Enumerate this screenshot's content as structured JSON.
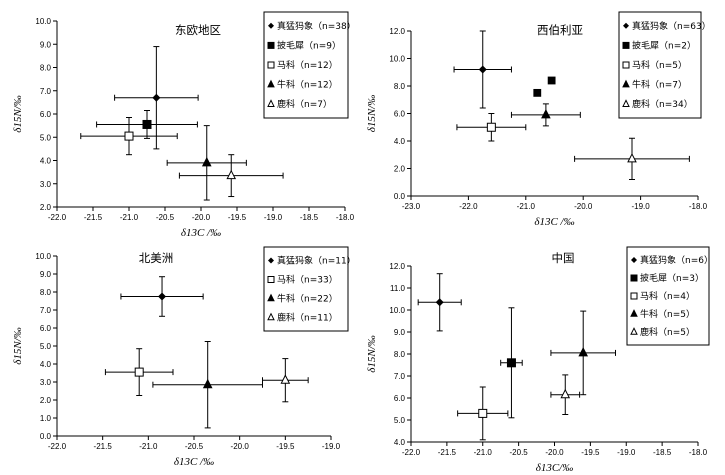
{
  "chart_data": [
    {
      "type": "scatter",
      "title": "东欧地区",
      "xlabel": "δ13C /‰",
      "ylabel": "δ15N/‰",
      "xlim": [
        -22.0,
        -18.0
      ],
      "ylim": [
        2.0,
        10.0
      ],
      "xticks": [
        "-22.0",
        "-21.5",
        "-21.0",
        "-20.5",
        "-20.0",
        "-19.5",
        "-19.0",
        "-18.5",
        "-18.0"
      ],
      "yticks": [
        "2.0",
        "3.0",
        "4.0",
        "5.0",
        "6.0",
        "7.0",
        "8.0",
        "9.0",
        "10.0"
      ],
      "legend_position": "right",
      "series": [
        {
          "name": "真猛犸象（n=38）",
          "marker": "diamond",
          "x": -20.62,
          "y": 6.7,
          "xerr": 0.58,
          "yerr": 2.2
        },
        {
          "name": "披毛犀（n=9）",
          "marker": "square",
          "x": -20.75,
          "y": 5.55,
          "xerr": 0.7,
          "yerr": 0.6
        },
        {
          "name": "马科（n=12）",
          "marker": "open-square",
          "x": -21.0,
          "y": 5.05,
          "xerr": 0.67,
          "yerr": 0.8
        },
        {
          "name": "牛科（n=12）",
          "marker": "triangle",
          "x": -19.92,
          "y": 3.9,
          "xerr": 0.55,
          "yerr": 1.6
        },
        {
          "name": "鹿科（n=7）",
          "marker": "open-triangle",
          "x": -19.58,
          "y": 3.35,
          "xerr": 0.72,
          "yerr": 0.9
        }
      ]
    },
    {
      "type": "scatter",
      "title": "西伯利亚",
      "xlabel": "δ13C /‰",
      "ylabel": "δ15N/‰",
      "xlim": [
        -23.0,
        -18.0
      ],
      "ylim": [
        0.0,
        12.0
      ],
      "xticks": [
        "-23.0",
        "-22.0",
        "-21.0",
        "-20.0",
        "-19.0",
        "-18.0"
      ],
      "yticks": [
        "0.0",
        "2.0",
        "4.0",
        "6.0",
        "8.0",
        "10.0",
        "12.0"
      ],
      "legend_position": "right",
      "series": [
        {
          "name": "真猛犸象（n=63）",
          "marker": "diamond",
          "x": -21.75,
          "y": 9.2,
          "xerr": 0.5,
          "yerr": 2.8
        },
        {
          "name": "披毛犀（n=2）",
          "marker": "square",
          "points": [
            [
              -20.8,
              7.5
            ],
            [
              -20.55,
              8.4
            ]
          ]
        },
        {
          "name": "马科（n=5）",
          "marker": "open-square",
          "x": -21.6,
          "y": 5.0,
          "xerr": 0.6,
          "yerr": 1.0
        },
        {
          "name": "牛科（n=7）",
          "marker": "triangle",
          "x": -20.65,
          "y": 5.9,
          "xerr": 0.6,
          "yerr": 0.8
        },
        {
          "name": "鹿科（n=34）",
          "marker": "open-triangle",
          "x": -19.15,
          "y": 2.7,
          "xerr": 1.0,
          "yerr": 1.5
        }
      ]
    },
    {
      "type": "scatter",
      "title": "北美洲",
      "xlabel": "δ13C /‰",
      "ylabel": "δ15N/‰",
      "xlim": [
        -22.0,
        -19.0
      ],
      "ylim": [
        0.0,
        10.0
      ],
      "xticks": [
        "-22.0",
        "-21.5",
        "-21.0",
        "-20.5",
        "-20.0",
        "-19.5",
        "-19.0"
      ],
      "yticks": [
        "0.0",
        "1.0",
        "2.0",
        "3.0",
        "4.0",
        "5.0",
        "6.0",
        "7.0",
        "8.0",
        "9.0",
        "10.0"
      ],
      "legend_position": "right",
      "series": [
        {
          "name": "真猛犸象（n=11）",
          "marker": "diamond",
          "x": -20.85,
          "y": 7.75,
          "xerr": 0.45,
          "yerr": 1.1
        },
        {
          "name": "马科（n=33）",
          "marker": "open-square",
          "x": -21.1,
          "y": 3.55,
          "xerr": 0.37,
          "yerr": 1.3
        },
        {
          "name": "牛科（n=22）",
          "marker": "triangle",
          "x": -20.35,
          "y": 2.85,
          "xerr": 0.6,
          "yerr": 2.4
        },
        {
          "name": "鹿科（n=11）",
          "marker": "open-triangle",
          "x": -19.5,
          "y": 3.1,
          "xerr": 0.25,
          "yerr": 1.2
        }
      ]
    },
    {
      "type": "scatter",
      "title": "中国",
      "xlabel": "δ13C/‰",
      "ylabel": "δ15N/‰",
      "xlim": [
        -22.0,
        -18.0
      ],
      "ylim": [
        4.0,
        12.0
      ],
      "xticks": [
        "-22.0",
        "-21.5",
        "-21.0",
        "-20.5",
        "-20.0",
        "-19.5",
        "-19.0",
        "-18.5",
        "-18.0"
      ],
      "yticks": [
        "4.0",
        "5.0",
        "6.0",
        "7.0",
        "8.0",
        "9.0",
        "10.0",
        "11.0",
        "12.0"
      ],
      "legend_position": "right",
      "series": [
        {
          "name": "真猛犸象（n=6）",
          "marker": "diamond",
          "x": -21.6,
          "y": 10.35,
          "xerr": 0.3,
          "yerr": 1.3
        },
        {
          "name": "披毛犀（n=3）",
          "marker": "square",
          "x": -20.6,
          "y": 7.6,
          "xerr": 0.15,
          "yerr": 2.5
        },
        {
          "name": "马科（n=4）",
          "marker": "open-square",
          "x": -21.0,
          "y": 5.3,
          "xerr": 0.35,
          "yerr": 1.2
        },
        {
          "name": "牛科（n=5）",
          "marker": "triangle",
          "x": -19.6,
          "y": 8.05,
          "xerr": 0.45,
          "yerr": 1.9
        },
        {
          "name": "鹿科（n=5）",
          "marker": "open-triangle",
          "x": -19.85,
          "y": 6.15,
          "xerr": 0.2,
          "yerr": 0.9
        }
      ]
    }
  ]
}
